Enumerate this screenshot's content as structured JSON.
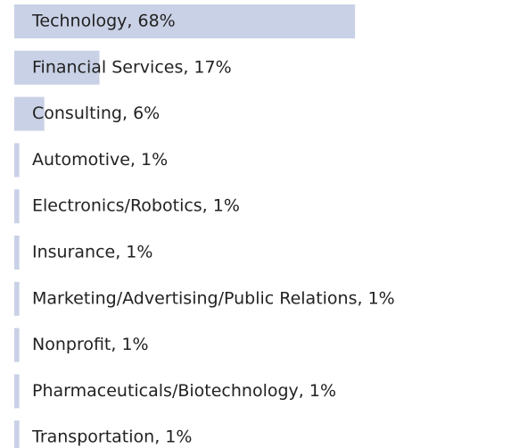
{
  "chart_data": {
    "type": "bar",
    "orientation": "horizontal",
    "values": [
      68,
      17,
      6,
      1,
      1,
      1,
      1,
      1,
      1,
      1
    ],
    "value_labels": [
      "Technology, 68%",
      "Financial Services, 17%",
      "Consulting, 6%",
      "Automotive, 1%",
      "Electronics/Robotics, 1%",
      "Insurance, 1%",
      "Marketing/Advertising/Public Relations, 1%",
      "Nonprofit, 1%",
      "Pharmaceuticals/Biotechnology, 1%",
      "Transportation, 1%"
    ],
    "color": "#c9d1e6",
    "xlim": [
      0,
      100
    ]
  }
}
